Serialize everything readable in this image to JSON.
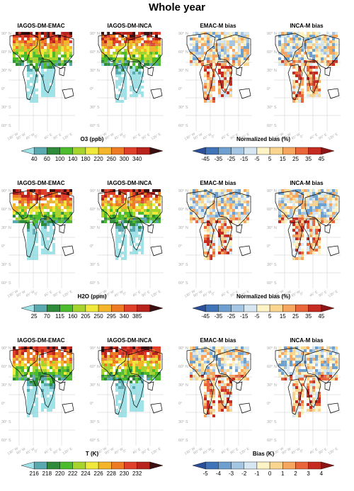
{
  "title": "Whole year",
  "panel_titles": [
    "IAGOS-DM-EMAC",
    "IAGOS-DM-INCA",
    "EMAC-M bias",
    "INCA-M bias"
  ],
  "lat_labels": [
    "90° N",
    "60° N",
    "30° N",
    "0°",
    "30° S",
    "60° S"
  ],
  "lon_labels": [
    "135° W",
    "90° W",
    "45° W",
    "0°",
    "45° E",
    "90° E",
    "135° E"
  ],
  "rows": [
    {
      "left_title": "O3 (ppb)",
      "left_ticks": [
        "40",
        "60",
        "100",
        "140",
        "180",
        "220",
        "260",
        "300",
        "340"
      ],
      "right_title": "Normalized bias (%)",
      "right_ticks": [
        "-45",
        "-35",
        "-25",
        "-15",
        "-5",
        "5",
        "15",
        "25",
        "35",
        "45"
      ]
    },
    {
      "left_title": "H2O (ppm)",
      "left_ticks": [
        "25",
        "70",
        "115",
        "160",
        "205",
        "250",
        "295",
        "340",
        "385"
      ],
      "right_title": "Normalized bias (%)",
      "right_ticks": [
        "-45",
        "-35",
        "-25",
        "-15",
        "-5",
        "5",
        "15",
        "25",
        "35",
        "45"
      ]
    },
    {
      "left_title": "T (K)",
      "left_ticks": [
        "216",
        "218",
        "220",
        "222",
        "224",
        "226",
        "228",
        "230",
        "232"
      ],
      "right_title": "Bias (K)",
      "right_ticks": [
        "-5",
        "-4",
        "-3",
        "-2",
        "-1",
        "0",
        "1",
        "2",
        "3",
        "4"
      ]
    }
  ],
  "colors": {
    "abs": [
      "#9fe3e8",
      "#58a9b0",
      "#2e8b3a",
      "#4cbc2c",
      "#a7d42c",
      "#f0e83a",
      "#f4b52a",
      "#ef7a24",
      "#e0402a",
      "#b8231d",
      "#3a1010"
    ],
    "bias": [
      "#2b4f9a",
      "#3f74b8",
      "#6ea0cf",
      "#a4c6e2",
      "#d6e7f2",
      "#fdf3c4",
      "#fad58f",
      "#f6a65e",
      "#e8663a",
      "#c52b21",
      "#8e1515"
    ]
  }
}
